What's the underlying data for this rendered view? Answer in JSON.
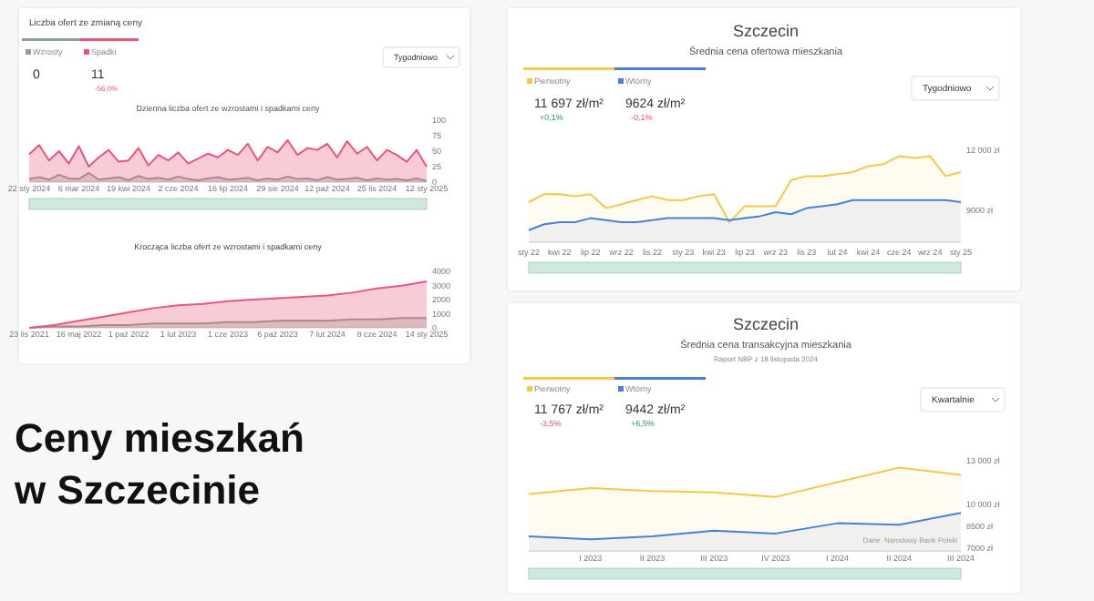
{
  "chart_data": [
    {
      "type": "area",
      "title": "Liczba ofert ze zmianą ceny",
      "subtitle": "Dzienna liczba ofert ze wzrostami i spadkami ceny",
      "legend": "top left",
      "marker": "none",
      "categories": [
        "22 sty 2024",
        null,
        null,
        null,
        null,
        "6 mar 2024",
        null,
        null,
        null,
        null,
        "19 kwi 2024",
        null,
        null,
        null,
        null,
        "2 cze 2024",
        null,
        null,
        null,
        null,
        "16 lip 2024",
        null,
        null,
        null,
        null,
        "29 sie 2024",
        null,
        null,
        null,
        null,
        "12 paź 2024",
        null,
        null,
        null,
        null,
        "25 lis 2024",
        null,
        null,
        null,
        null,
        "12 sty 2025"
      ],
      "ylim": [
        0,
        100
      ],
      "yticks": [
        0,
        25,
        50,
        75,
        100
      ],
      "annotations": [
        "0",
        "11",
        "-56,0%",
        "Tygodniowo"
      ],
      "series": [
        {
          "name": "Wzrosty",
          "color": "#8fa094",
          "values": [
            5,
            8,
            4,
            12,
            6,
            5,
            15,
            4,
            6,
            8,
            3,
            10,
            5,
            7,
            4,
            9,
            5,
            3,
            6,
            8,
            4,
            5,
            7,
            3,
            6,
            4,
            9,
            5,
            6,
            3,
            8,
            4,
            5,
            7,
            3,
            6,
            4,
            5,
            3,
            6,
            2
          ]
        },
        {
          "name": "Spadki",
          "color": "#e8577a",
          "values": [
            45,
            60,
            35,
            50,
            30,
            58,
            25,
            40,
            52,
            33,
            35,
            55,
            27,
            44,
            35,
            48,
            30,
            38,
            46,
            40,
            52,
            44,
            62,
            35,
            57,
            48,
            68,
            44,
            55,
            52,
            62,
            40,
            66,
            46,
            57,
            35,
            52,
            44,
            33,
            52,
            25
          ]
        }
      ]
    },
    {
      "type": "area",
      "title": "Krocząca liczba ofert ze wzrostami i spadkami ceny",
      "marker": "none",
      "categories": [
        "23 lis 2021",
        null,
        "16 maj 2022",
        null,
        "1 paź 2022",
        null,
        "1 lut 2023",
        null,
        "1 cze 2023",
        null,
        "6 paź 2023",
        null,
        "7 lut 2024",
        null,
        "8 cze 2024",
        null,
        "14 sty 2025"
      ],
      "ylim": [
        0,
        4000
      ],
      "yticks": [
        0,
        1000,
        2000,
        3000,
        4000
      ],
      "series": [
        {
          "color": "#8fa094",
          "values": [
            0,
            100,
            100,
            200,
            200,
            300,
            300,
            300,
            400,
            400,
            500,
            500,
            500,
            600,
            600,
            700,
            700
          ]
        },
        {
          "color": "#e8577a",
          "values": [
            0,
            200,
            500,
            800,
            1100,
            1400,
            1600,
            1700,
            1900,
            2000,
            2100,
            2200,
            2300,
            2500,
            2800,
            3000,
            3300
          ]
        }
      ]
    },
    {
      "type": "area",
      "title": "Szczecin",
      "subtitle": "Średnia cena ofertowa mieszkania",
      "legend": "top left",
      "marker": "none",
      "categories": [
        "sty 22",
        null,
        "kwi 22",
        null,
        "lip 22",
        null,
        "wrz 22",
        null,
        "lis 22",
        null,
        "sty 23",
        null,
        "kwi 23",
        null,
        "lip 23",
        null,
        "wrz 23",
        null,
        "lis 23",
        null,
        "lut 24",
        null,
        "kwi 24",
        null,
        "cze 24",
        null,
        "wrz 24",
        null,
        "sty 25"
      ],
      "ylim": [
        7400,
        12000
      ],
      "yticks": [
        {
          "value": 9000,
          "label": "9000 zł"
        },
        {
          "value": 12000,
          "label": "12 000 zł"
        }
      ],
      "annotations": [
        "11 697 zł/m²",
        "+0,1%",
        "9624 zł/m²",
        "-0,1%",
        "Tygodniowo"
      ],
      "series": [
        {
          "name": "Pierwotny",
          "color": "#f2c94c",
          "values": [
            9400,
            9800,
            9800,
            9700,
            9800,
            9100,
            9300,
            9500,
            9700,
            9500,
            9500,
            9700,
            9800,
            8400,
            9200,
            9200,
            9200,
            10500,
            10700,
            10700,
            10800,
            10900,
            11200,
            11300,
            11700,
            11600,
            11700,
            10700,
            10900
          ]
        },
        {
          "name": "Wtórny",
          "color": "#4a7fd8",
          "values": [
            8000,
            8300,
            8400,
            8400,
            8600,
            8500,
            8400,
            8400,
            8500,
            8600,
            8600,
            8600,
            8600,
            8500,
            8600,
            8700,
            8900,
            8800,
            9100,
            9200,
            9300,
            9500,
            9500,
            9500,
            9500,
            9500,
            9500,
            9500,
            9400
          ]
        }
      ]
    },
    {
      "type": "area",
      "title": "Szczecin",
      "subtitle": "Średnia cena transakcyjna mieszkania",
      "legend": "top left",
      "marker": "none",
      "categories": [
        null,
        "I 2023",
        "II 2023",
        "III 2023",
        "IV 2023",
        "I 2024",
        "II 2024",
        "III 2024"
      ],
      "ylim": [
        6800,
        13000
      ],
      "yticks": [
        {
          "value": 7000,
          "label": "7000 zł"
        },
        {
          "value": 8500,
          "label": "8500 zł"
        },
        {
          "value": 10000,
          "label": "10 000 zł"
        },
        {
          "value": 13000,
          "label": "13 000 zł"
        }
      ],
      "annotations": [
        "Raport NBP z 18 listopada 2024",
        "11 767 zł/m²",
        "-3,5%",
        "9442 zł/m²",
        "+6,5%",
        "Kwartalnie",
        "Dane: Narodowy Bank Polski"
      ],
      "series": [
        {
          "name": "Pierwotny",
          "color": "#f2c94c",
          "values": [
            10700,
            11100,
            10900,
            10800,
            10500,
            11500,
            12500,
            12000
          ]
        },
        {
          "name": "Wtórny",
          "color": "#4a7fd8",
          "values": [
            7800,
            7600,
            7800,
            8200,
            8000,
            8700,
            8600,
            9400
          ]
        }
      ]
    },
    {
      "type": "other",
      "title": "Ceny mieszkań w Szczecinie"
    }
  ]
}
